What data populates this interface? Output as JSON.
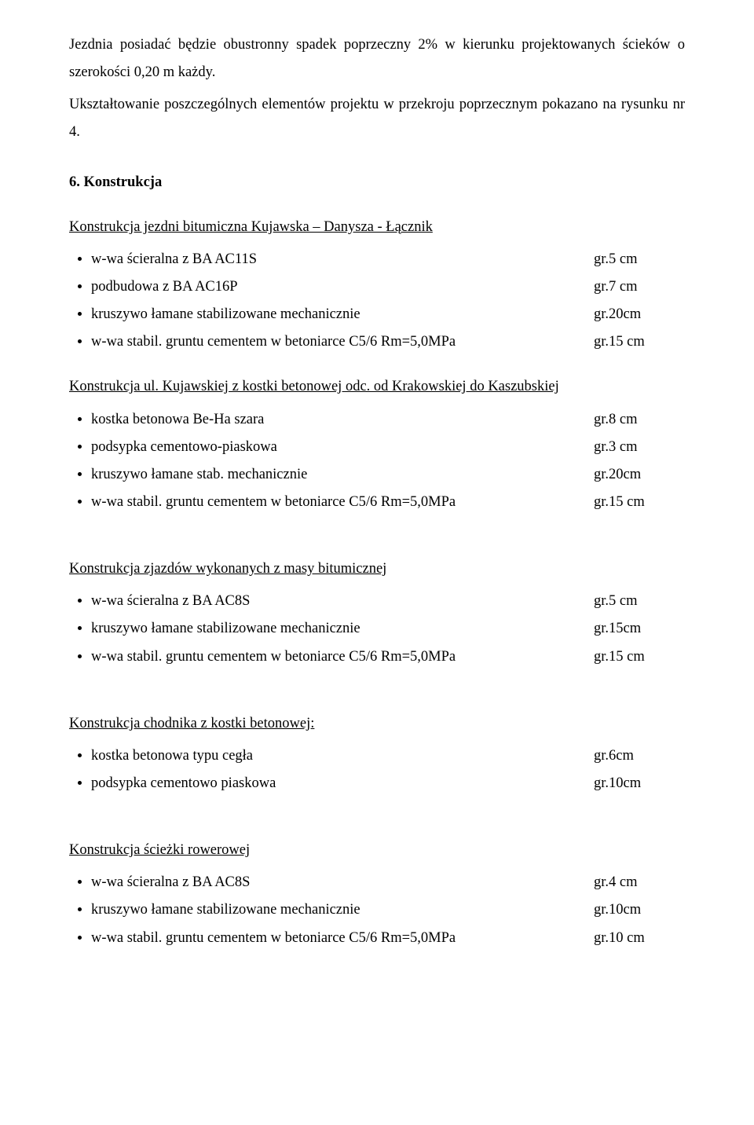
{
  "intro": {
    "p1a": "Jezdnia posiadać będzie obustronny spadek poprzeczny 2% w kierunku projektowanych ścieków o szerokości 0,20 m każdy.",
    "p2a": "Ukształtowanie poszczególnych elementów projektu w przekroju poprzecznym pokazano na rysunku nr 4."
  },
  "section6": {
    "heading": "6.  Konstrukcja",
    "group1": {
      "title": "Konstrukcja jezdni bitumiczna Kujawska – Danysza - Łącznik",
      "items": [
        {
          "label": "w-wa ścieralna z BA AC11S",
          "value": "gr.5 cm"
        },
        {
          "label": "podbudowa z BA AC16P",
          "value": "gr.7 cm"
        },
        {
          "label": "kruszywo łamane stabilizowane mechanicznie",
          "value": "gr.20cm"
        },
        {
          "label": "w-wa stabil. gruntu cementem w betoniarce C5/6 Rm=5,0MPa",
          "value": "gr.15 cm"
        }
      ]
    },
    "group2": {
      "title": "Konstrukcja ul. Kujawskiej z kostki betonowej odc. od Krakowskiej do Kaszubskiej",
      "items": [
        {
          "label": "kostka betonowa Be-Ha szara",
          "value": "gr.8 cm"
        },
        {
          "label": "podsypka cementowo-piaskowa",
          "value": "gr.3 cm"
        },
        {
          "label": "kruszywo łamane stab. mechanicznie",
          "value": "gr.20cm"
        },
        {
          "label": "w-wa stabil. gruntu cementem w betoniarce C5/6 Rm=5,0MPa",
          "value": "gr.15 cm"
        }
      ]
    },
    "group3": {
      "title": "Konstrukcja zjazdów wykonanych z masy bitumicznej",
      "items": [
        {
          "label": "w-wa ścieralna z BA AC8S",
          "value": "gr.5 cm"
        },
        {
          "label": "kruszywo łamane stabilizowane mechanicznie",
          "value": "gr.15cm"
        },
        {
          "label": "w-wa stabil. gruntu cementem w betoniarce C5/6 Rm=5,0MPa",
          "value": "gr.15 cm"
        }
      ]
    },
    "group4": {
      "title": "Konstrukcja chodnika z kostki betonowej:",
      "items": [
        {
          "label": "kostka betonowa typu cegła",
          "value": "gr.6cm"
        },
        {
          "label": "podsypka cementowo piaskowa",
          "value": "gr.10cm"
        }
      ]
    },
    "group5": {
      "title": "Konstrukcja ścieżki rowerowej",
      "items": [
        {
          "label": "w-wa ścieralna z BA AC8S",
          "value": "gr.4 cm"
        },
        {
          "label": "kruszywo łamane stabilizowane mechanicznie",
          "value": "gr.10cm"
        },
        {
          "label": "w-wa stabil. gruntu cementem w betoniarce C5/6 Rm=5,0MPa",
          "value": "gr.10 cm"
        }
      ]
    }
  },
  "valueColumnLeft": 600
}
